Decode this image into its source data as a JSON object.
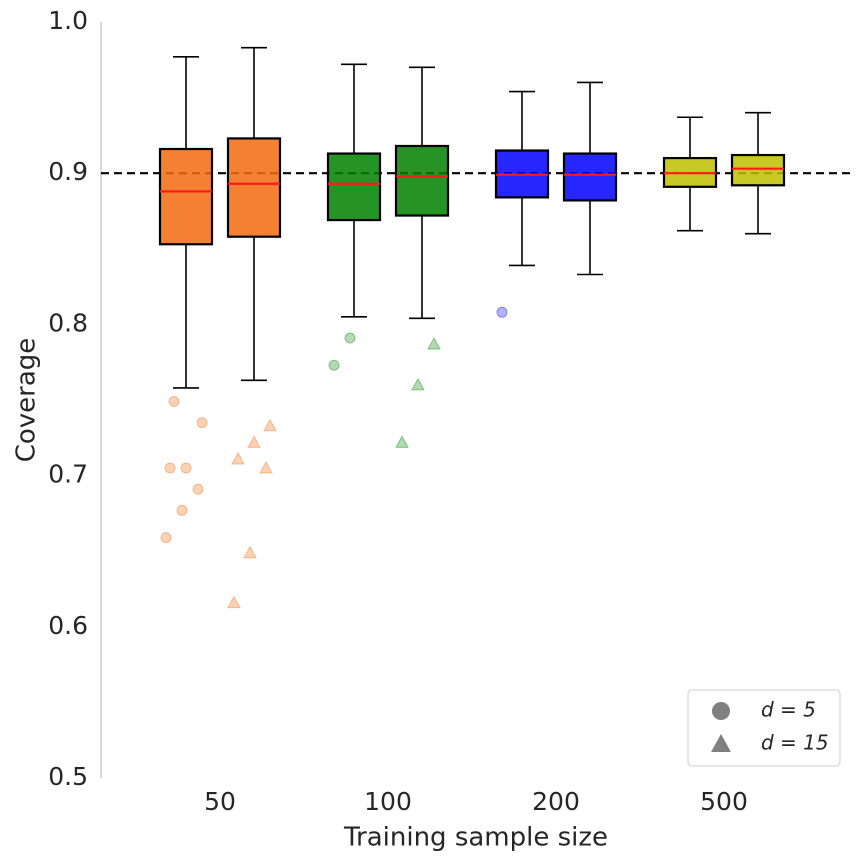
{
  "chart_data": {
    "type": "box",
    "x_label": "Training sample size",
    "y_label": "Coverage",
    "categories": [
      "50",
      "100",
      "200",
      "500"
    ],
    "colors": [
      "#f26b0f",
      "#008000",
      "#0000ff",
      "#bfbf00"
    ],
    "ylim": [
      0.5,
      1.0
    ],
    "yticks": [
      0.5,
      0.6,
      0.7,
      0.8,
      0.9,
      {
        "value": 1.0,
        "label": "1.0"
      }
    ],
    "reference_line": 0.9,
    "legend_position": "lower right",
    "series": [
      {
        "name": "d = 5",
        "marker": "circle",
        "boxes": [
          {
            "low": 0.758,
            "q1": 0.853,
            "median": 0.888,
            "q3": 0.916,
            "high": 0.977,
            "outliers": [
              0.659,
              0.677,
              0.691,
              0.705,
              0.705,
              0.735,
              0.749
            ]
          },
          {
            "low": 0.805,
            "q1": 0.869,
            "median": 0.893,
            "q3": 0.913,
            "high": 0.972,
            "outliers": [
              0.773,
              0.791
            ]
          },
          {
            "low": 0.839,
            "q1": 0.884,
            "median": 0.899,
            "q3": 0.915,
            "high": 0.954,
            "outliers": [
              0.808
            ]
          },
          {
            "low": 0.862,
            "q1": 0.891,
            "median": 0.9,
            "q3": 0.91,
            "high": 0.937,
            "outliers": []
          }
        ]
      },
      {
        "name": "d = 15",
        "marker": "triangle",
        "boxes": [
          {
            "low": 0.763,
            "q1": 0.858,
            "median": 0.893,
            "q3": 0.923,
            "high": 0.983,
            "outliers": [
              0.616,
              0.649,
              0.705,
              0.711,
              0.722,
              0.733
            ]
          },
          {
            "low": 0.804,
            "q1": 0.872,
            "median": 0.898,
            "q3": 0.918,
            "high": 0.97,
            "outliers": [
              0.722,
              0.76,
              0.787
            ]
          },
          {
            "low": 0.833,
            "q1": 0.882,
            "median": 0.899,
            "q3": 0.913,
            "high": 0.96,
            "outliers": []
          },
          {
            "low": 0.86,
            "q1": 0.892,
            "median": 0.903,
            "q3": 0.912,
            "high": 0.94,
            "outliers": []
          }
        ]
      }
    ]
  }
}
